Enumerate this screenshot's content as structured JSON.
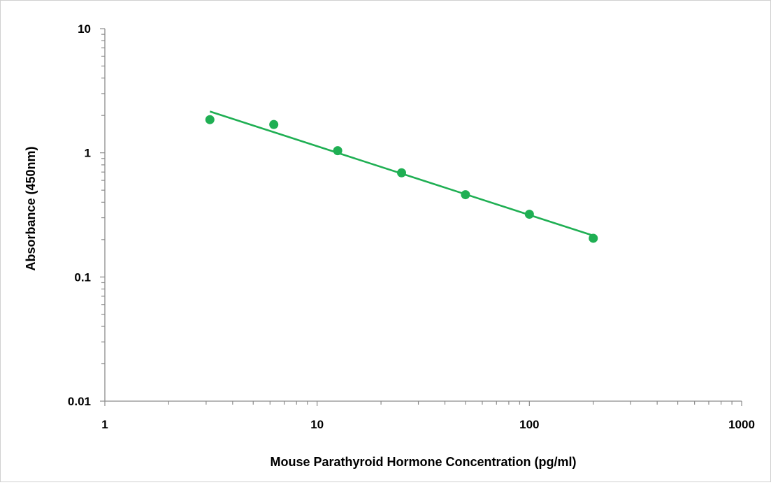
{
  "chart_data": {
    "type": "scatter",
    "title": "",
    "xlabel": "Mouse Parathyroid Hormone Concentration (pg/ml)",
    "ylabel": "Absorbance (450nm)",
    "xscale": "log",
    "yscale": "log",
    "xlim": [
      1,
      1000
    ],
    "ylim": [
      0.01,
      10
    ],
    "x_ticks": [
      "1",
      "10",
      "100",
      "1000"
    ],
    "y_ticks": [
      "10",
      "1",
      "0.1",
      "0.01"
    ],
    "grid": false,
    "legend": "none",
    "series": [
      {
        "x": [
          3.125,
          6.25,
          12.5,
          25,
          50,
          100,
          200
        ],
        "y": [
          1.85,
          1.69,
          1.04,
          0.69,
          0.46,
          0.32,
          0.205
        ],
        "color": "#1faf53"
      }
    ],
    "trendline": {
      "type": "power",
      "x_range": [
        3.125,
        200
      ],
      "color": "#1faf53"
    }
  }
}
